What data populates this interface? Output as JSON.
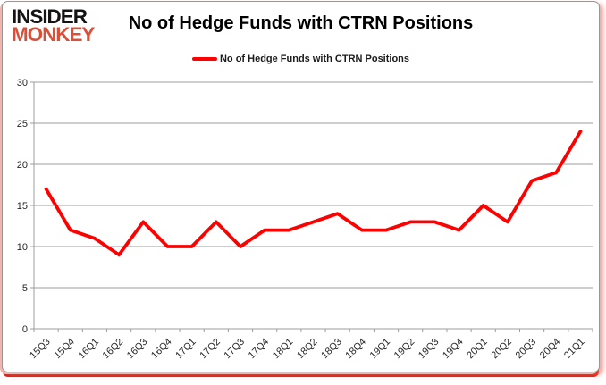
{
  "logo": {
    "line1": "INSIDER",
    "line2": "MONKEY"
  },
  "header": {
    "title": "No of Hedge Funds with CTRN Positions"
  },
  "legend": {
    "label": "No of Hedge Funds with CTRN Positions"
  },
  "chart_data": {
    "type": "line",
    "title": "No of Hedge Funds with CTRN Positions",
    "categories": [
      "15Q3",
      "15Q4",
      "16Q1",
      "16Q2",
      "16Q3",
      "16Q4",
      "17Q1",
      "17Q2",
      "17Q3",
      "17Q4",
      "18Q1",
      "18Q2",
      "18Q3",
      "18Q4",
      "19Q1",
      "19Q2",
      "19Q3",
      "19Q4",
      "20Q1",
      "20Q2",
      "20Q3",
      "20Q4",
      "21Q1"
    ],
    "values": [
      17,
      12,
      11,
      9,
      13,
      10,
      10,
      13,
      10,
      12,
      12,
      13,
      14,
      12,
      12,
      13,
      13,
      12,
      15,
      13,
      18,
      19,
      24
    ],
    "xlabel": "",
    "ylabel": "",
    "ylim": [
      0,
      30
    ],
    "yticks": [
      0,
      5,
      10,
      15,
      20,
      25,
      30
    ],
    "grid": true,
    "legend_position": "top-center",
    "line_color": "#ff0000",
    "grid_color": "#9c9c9c",
    "tick_label_color": "#262626"
  },
  "colors": {
    "logo_black": "#141414",
    "logo_red": "#d9503a",
    "border_red": "#e71c0e",
    "border_pink": "#f3b4ad"
  }
}
